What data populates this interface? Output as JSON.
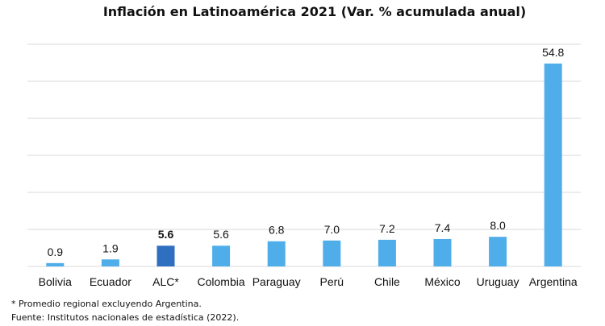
{
  "chart_data": {
    "type": "bar",
    "title": "Inflación en Latinoamérica 2021 (Var. % acumulada anual)",
    "xlabel": "",
    "ylabel": "",
    "ylim": [
      0,
      60
    ],
    "grid": true,
    "categories": [
      "Bolivia",
      "Ecuador",
      "ALC*",
      "Colombia",
      "Paraguay",
      "Perú",
      "Chile",
      "México",
      "Uruguay",
      "Argentina"
    ],
    "values": [
      0.9,
      1.9,
      5.6,
      5.6,
      6.8,
      7.0,
      7.2,
      7.4,
      8.0,
      54.8
    ],
    "data_labels": [
      "0.9",
      "1.9",
      "5.6",
      "5.6",
      "6.8",
      "7.0",
      "7.2",
      "7.4",
      "8.0",
      "54.8"
    ],
    "highlight_index": 2,
    "colors": {
      "bar": "#4faee9",
      "highlight": "#2f6fc0",
      "grid": "#d9d9d9"
    }
  },
  "notes": {
    "footnote": "* Promedio regional excluyendo Argentina.",
    "source": "Fuente: Institutos nacionales de estadística (2022)."
  }
}
